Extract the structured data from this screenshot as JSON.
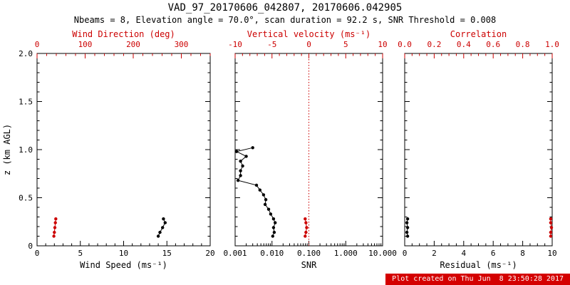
{
  "header": {
    "title": "VAD_97_20170606_042807, 20170606.042905",
    "subtitle": "Nbeams = 8, Elevation angle = 70.0°, scan duration = 92.2 s, SNR Threshold = 0.008"
  },
  "footer": {
    "text": "Plot created on Thu Jun  8 23:50:28 2017"
  },
  "colors": {
    "red": "#cc0000",
    "black": "#000000",
    "footer_bg": "#d40000",
    "footer_text": "#ffffff",
    "background": "#ffffff"
  },
  "y_axis": {
    "label": "z (km AGL)",
    "min": 0,
    "max": 2.0,
    "ticks": [
      0,
      0.5,
      1.0,
      1.5,
      2.0
    ],
    "tick_labels": [
      "0",
      "0.5",
      "1.0",
      "1.5",
      "2.0"
    ]
  },
  "chart_data": [
    {
      "type": "line",
      "name": "wind-panel",
      "bottom_axis": {
        "label": "Wind Speed (ms⁻¹)",
        "min": 0,
        "max": 20,
        "scale": "linear",
        "color": "black",
        "ticks": [
          0,
          5,
          10,
          15,
          20
        ],
        "tick_labels": [
          "0",
          "5",
          "10",
          "15",
          "20"
        ],
        "minor_divs": 5
      },
      "top_axis": {
        "label": "Wind Direction (deg)",
        "min": 0,
        "max": 360,
        "scale": "linear",
        "color": "red",
        "ticks": [
          0,
          100,
          200,
          300
        ],
        "tick_labels": [
          "0",
          "100",
          "200",
          "300"
        ],
        "minor_divs": 5
      },
      "series": [
        {
          "name": "wind-speed",
          "axis": "bottom",
          "color": "black",
          "marker": "circle",
          "z": [
            0.1,
            0.14,
            0.19,
            0.24,
            0.28
          ],
          "values": [
            14.0,
            14.2,
            14.5,
            14.8,
            14.6
          ]
        },
        {
          "name": "wind-direction",
          "axis": "top",
          "color": "red",
          "marker": "circle",
          "z": [
            0.1,
            0.14,
            0.19,
            0.24,
            0.28
          ],
          "values": [
            35,
            36,
            37,
            38,
            39
          ]
        }
      ]
    },
    {
      "type": "line",
      "name": "snr-panel",
      "bottom_axis": {
        "label": "SNR",
        "min": 0.001,
        "max": 10.0,
        "scale": "log",
        "color": "black",
        "ticks": [
          0.001,
          0.01,
          0.1,
          1.0,
          10.0
        ],
        "tick_labels": [
          "0.001",
          "0.010",
          "0.100",
          "1.000",
          "10.000"
        ]
      },
      "top_axis": {
        "label": "Vertical velocity (ms⁻¹)",
        "min": -10,
        "max": 10,
        "scale": "linear",
        "color": "red",
        "ticks": [
          -10,
          -5,
          0,
          5,
          10
        ],
        "tick_labels": [
          "-10",
          "-5",
          "0",
          "5",
          "10"
        ],
        "minor_divs": 5
      },
      "ref_line": {
        "axis": "top",
        "value": 0,
        "style": "dotted",
        "color": "red"
      },
      "series": [
        {
          "name": "snr",
          "axis": "bottom",
          "color": "black",
          "marker": "circle",
          "z": [
            1.02,
            0.98,
            0.93,
            0.88,
            0.83,
            0.78,
            0.73,
            0.68,
            0.63,
            0.58,
            0.53,
            0.48,
            0.43,
            0.38,
            0.33,
            0.28,
            0.24,
            0.19,
            0.14,
            0.1
          ],
          "values": [
            0.003,
            0.0011,
            0.002,
            0.0014,
            0.0016,
            0.0014,
            0.0014,
            0.0012,
            0.0038,
            0.0047,
            0.0059,
            0.0068,
            0.0065,
            0.0081,
            0.0092,
            0.011,
            0.0122,
            0.011,
            0.0115,
            0.0105
          ]
        },
        {
          "name": "vertical-velocity",
          "axis": "top",
          "color": "red",
          "marker": "circle",
          "z": [
            0.1,
            0.14,
            0.19,
            0.24,
            0.28
          ],
          "values": [
            -0.5,
            -0.4,
            -0.3,
            -0.4,
            -0.5
          ]
        }
      ]
    },
    {
      "type": "line",
      "name": "residual-panel",
      "bottom_axis": {
        "label": "Residual (ms⁻¹)",
        "min": 0,
        "max": 10,
        "scale": "linear",
        "color": "black",
        "ticks": [
          0,
          2,
          4,
          6,
          8,
          10
        ],
        "tick_labels": [
          "0",
          "2",
          "4",
          "6",
          "8",
          "10"
        ],
        "minor_divs": 4
      },
      "top_axis": {
        "label": "Correlation",
        "min": 0,
        "max": 1.0,
        "scale": "linear",
        "color": "red",
        "ticks": [
          0,
          0.2,
          0.4,
          0.6,
          0.8,
          1.0
        ],
        "tick_labels": [
          "0.0",
          "0.2",
          "0.4",
          "0.6",
          "0.8",
          "1.0"
        ],
        "minor_divs": 4
      },
      "series": [
        {
          "name": "residual",
          "axis": "bottom",
          "color": "black",
          "marker": "circle",
          "z": [
            0.1,
            0.14,
            0.19,
            0.24,
            0.28
          ],
          "values": [
            0.2,
            0.15,
            0.2,
            0.15,
            0.2
          ]
        },
        {
          "name": "correlation",
          "axis": "top",
          "color": "red",
          "marker": "circle",
          "z": [
            0.1,
            0.14,
            0.19,
            0.24,
            0.28
          ],
          "values": [
            0.99,
            0.99,
            0.995,
            0.99,
            0.99
          ]
        }
      ]
    }
  ]
}
